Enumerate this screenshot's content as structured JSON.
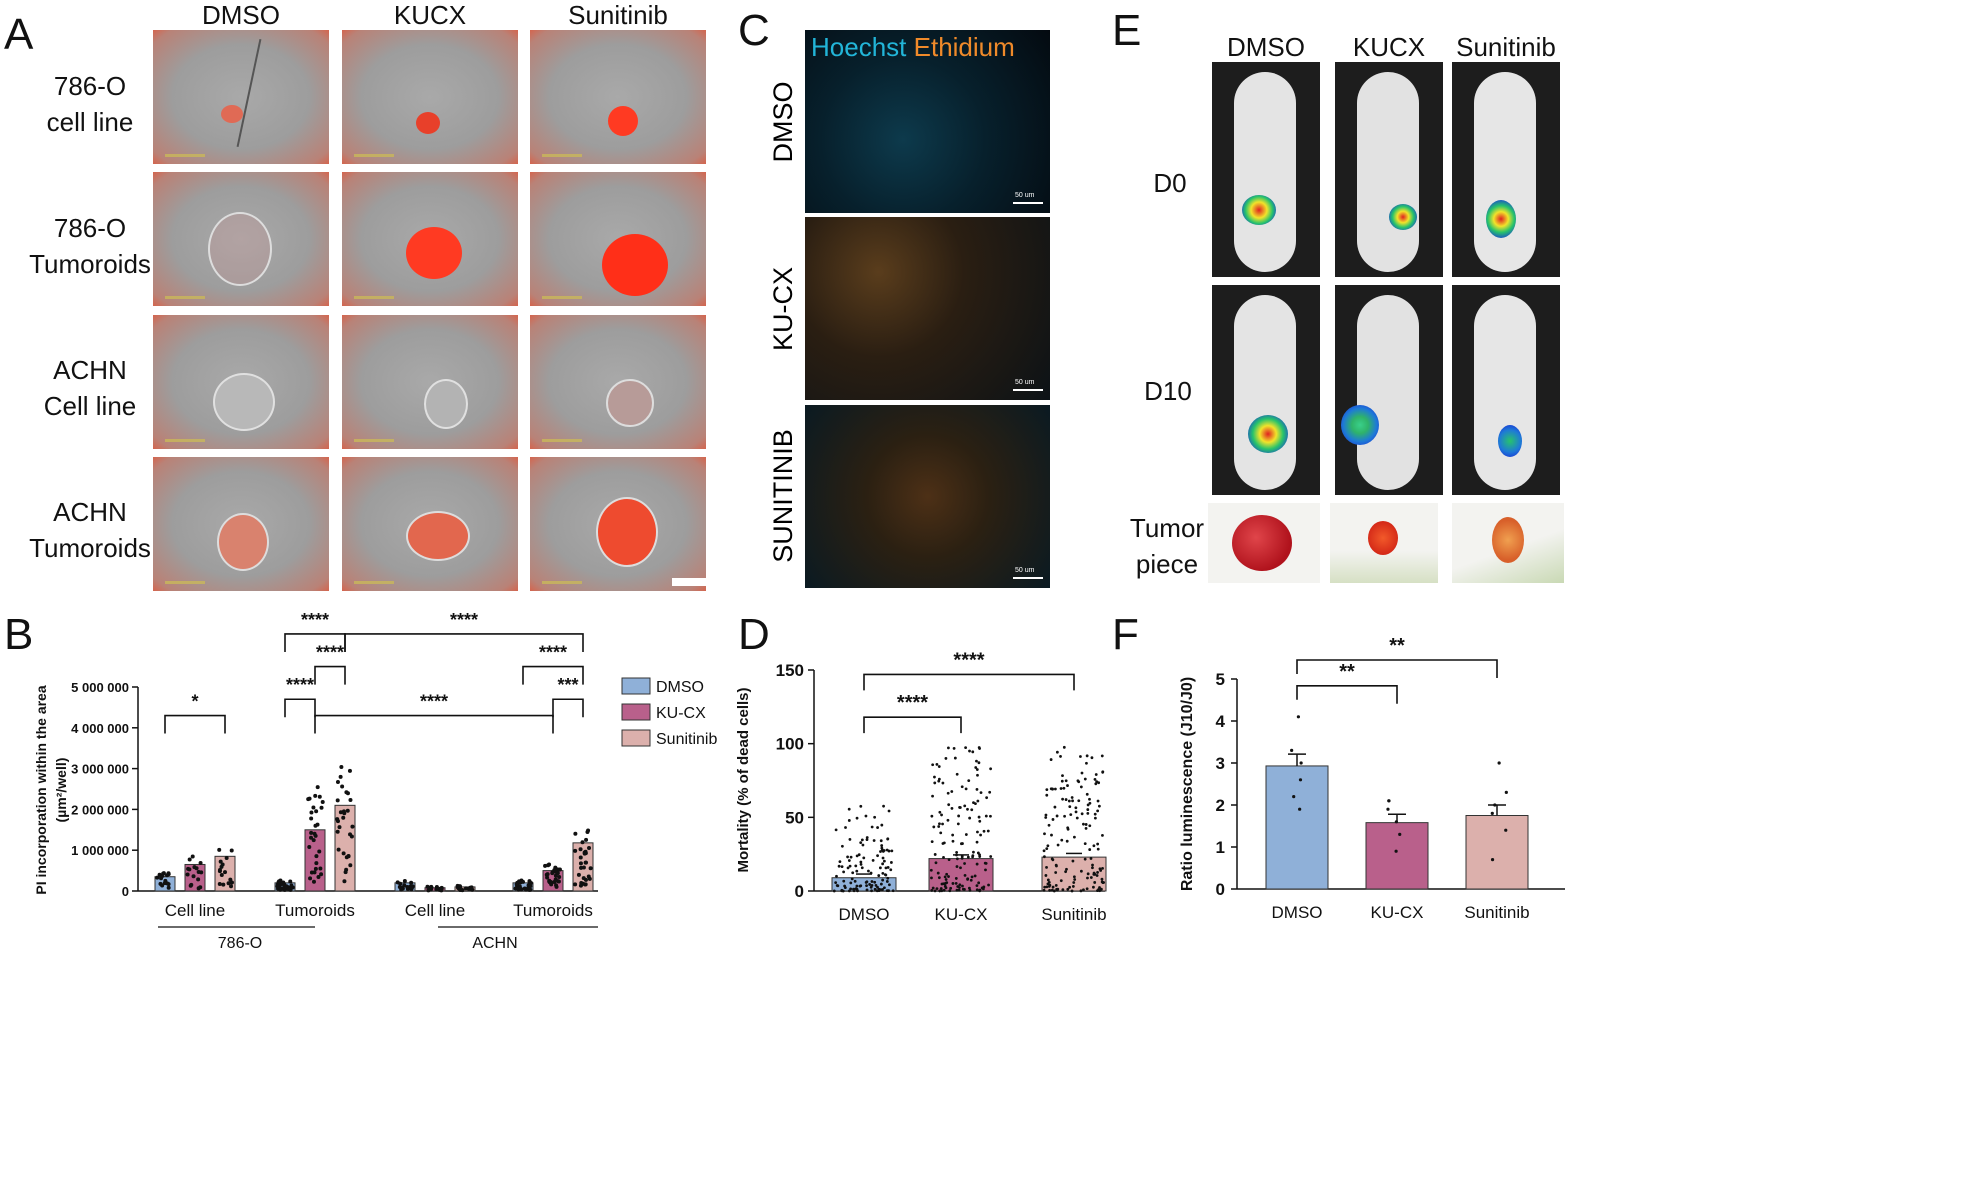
{
  "panels": {
    "a": "A",
    "b": "B",
    "c": "C",
    "d": "D",
    "e": "E",
    "f": "F"
  },
  "panelA": {
    "columns": [
      "DMSO",
      "KUCX",
      "Sunitinib"
    ],
    "rows": [
      {
        "l1": "786-O",
        "l2": "cell line"
      },
      {
        "l1": "786-O",
        "l2": "Tumoroids"
      },
      {
        "l1": "ACHN",
        "l2": "Cell line"
      },
      {
        "l1": "ACHN",
        "l2": "Tumoroids"
      }
    ]
  },
  "panelC": {
    "legend_a": "Hoechst",
    "legend_b": "Ethidium",
    "rows": [
      "DMSO",
      "KU-CX",
      "SUNITINIB"
    ],
    "scale": "50 um"
  },
  "panelE": {
    "columns": [
      "DMSO",
      "KUCX",
      "Sunitinib"
    ],
    "rows": [
      "D0",
      "D10"
    ],
    "tumor_l1": "Tumor",
    "tumor_l2": "piece"
  },
  "colors": {
    "dmso": "#8fb0d8",
    "kucx": "#b9608b",
    "sunitinib": "#dcb0ac"
  },
  "chart_data": [
    {
      "id": "B",
      "type": "bar",
      "ylabel_l1": "PI incorporation within the area",
      "ylabel_l2": "(µm²/well)",
      "ylim": [
        0,
        5000000
      ],
      "yticks": [
        0,
        1000000,
        2000000,
        3000000,
        4000000,
        5000000
      ],
      "ytick_labels": [
        "0",
        "1 000 000",
        "2 000 000",
        "3 000 000",
        "4 000 000",
        "5 000 000"
      ],
      "groups": [
        "Cell line",
        "Tumoroids",
        "Cell line",
        "Tumoroids"
      ],
      "supergroups": [
        "786-O",
        "ACHN"
      ],
      "series": [
        {
          "name": "DMSO",
          "values": [
            350000,
            200000,
            200000,
            200000
          ]
        },
        {
          "name": "KU-CX",
          "values": [
            650000,
            1500000,
            80000,
            500000
          ]
        },
        {
          "name": "Sunitinib",
          "values": [
            850000,
            2100000,
            100000,
            1180000
          ]
        }
      ],
      "legend": [
        "DMSO",
        "KU-CX",
        "Sunitinib"
      ],
      "brackets": [
        {
          "from": 0,
          "to": 2,
          "level": 4300000,
          "label": "*"
        },
        {
          "from": 3,
          "to": 5,
          "level": 6300000,
          "label": "****"
        },
        {
          "from": 4,
          "to": 5,
          "level": 5500000,
          "label": "****"
        },
        {
          "from": 3,
          "to": 4,
          "level": 4700000,
          "label": "****"
        },
        {
          "from": 5,
          "to": 11,
          "level": 6300000,
          "label": "****"
        },
        {
          "from": 4,
          "to": 10,
          "level": 4300000,
          "label": "****"
        },
        {
          "from": 9,
          "to": 11,
          "level": 5500000,
          "label": "****"
        },
        {
          "from": 10,
          "to": 11,
          "level": 4700000,
          "label": "***"
        }
      ]
    },
    {
      "id": "D",
      "type": "bar",
      "ylabel": "Mortality (% of dead cells)",
      "ylim": [
        0,
        150
      ],
      "yticks": [
        0,
        50,
        100,
        150
      ],
      "categories": [
        "DMSO",
        "KU-CX",
        "Sunitinib"
      ],
      "values": [
        9,
        22,
        23
      ],
      "brackets": [
        {
          "from": 0,
          "to": 1,
          "level": 118,
          "label": "****"
        },
        {
          "from": 0,
          "to": 2,
          "level": 147,
          "label": "****"
        }
      ]
    },
    {
      "id": "F",
      "type": "bar",
      "ylabel": "Ratio luminescence (J10/J0)",
      "ylim": [
        0,
        5
      ],
      "yticks": [
        0,
        1,
        2,
        3,
        4,
        5
      ],
      "categories": [
        "DMSO",
        "KU-CX",
        "Sunitinib"
      ],
      "values": [
        2.93,
        1.58,
        1.75
      ],
      "errors": [
        0.28,
        0.2,
        0.25
      ],
      "points": [
        [
          4.1,
          3.3,
          3.0,
          2.6,
          2.2,
          1.9
        ],
        [
          2.1,
          2.1,
          1.9,
          1.6,
          1.3,
          0.9
        ],
        [
          3.0,
          2.3,
          2.0,
          1.8,
          1.4,
          0.7
        ]
      ],
      "brackets": [
        {
          "from": 0,
          "to": 1,
          "level": 4.6,
          "label": "**"
        },
        {
          "from": 0,
          "to": 2,
          "level": 5.5,
          "label": "**"
        }
      ]
    }
  ]
}
